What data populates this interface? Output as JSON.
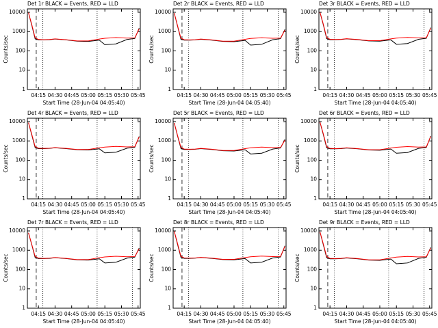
{
  "chart_data": [
    {
      "type": "line",
      "title": "Det 1r BLACK = Events, RED = LLD",
      "ylabel": "Counts/sec",
      "xlabel": "Start Time (28-Jun-04 04:05:40)",
      "log_y": true,
      "x": [
        "04:06",
        "04:09",
        "04:12",
        "04:15",
        "04:20",
        "04:25",
        "04:30",
        "04:40",
        "04:50",
        "05:00",
        "05:10",
        "05:15",
        "05:25",
        "05:35",
        "05:42",
        "05:46"
      ],
      "series": [
        {
          "color": "#000000",
          "values": [
            9500,
            2100,
            420,
            370,
            370,
            380,
            410,
            370,
            320,
            310,
            360,
            210,
            230,
            390,
            440,
            1500
          ]
        },
        {
          "color": "#ff0000",
          "values": [
            9500,
            2300,
            480,
            390,
            380,
            390,
            420,
            380,
            330,
            330,
            410,
            450,
            490,
            460,
            470,
            1400
          ]
        }
      ],
      "xlim": [
        "04:05",
        "05:47"
      ],
      "xticks": [
        "04:15",
        "04:30",
        "04:45",
        "05:00",
        "05:15",
        "05:30",
        "05:45"
      ],
      "ylim": [
        1,
        15000
      ],
      "yticks": [
        1,
        10,
        100,
        1000,
        10000
      ],
      "vlines": [
        {
          "x": "04:13",
          "style": "dashed"
        },
        {
          "x": "04:19",
          "style": "dotted"
        },
        {
          "x": "05:08",
          "style": "dotted"
        },
        {
          "x": "05:40",
          "style": "dotted"
        }
      ]
    },
    {
      "type": "line",
      "title": "Det 2r BLACK = Events, RED = LLD",
      "ylabel": "Counts/sec",
      "xlabel": "Start Time (28-Jun-04 04:05:40)",
      "log_y": true,
      "x": [
        "04:06",
        "04:09",
        "04:12",
        "04:15",
        "04:20",
        "04:25",
        "04:30",
        "04:40",
        "04:50",
        "05:00",
        "05:10",
        "05:15",
        "05:25",
        "05:35",
        "05:42",
        "05:46"
      ],
      "series": [
        {
          "color": "#000000",
          "values": [
            9000,
            1900,
            400,
            360,
            360,
            370,
            400,
            360,
            310,
            300,
            350,
            200,
            220,
            380,
            430,
            1300
          ]
        },
        {
          "color": "#ff0000",
          "values": [
            9000,
            2000,
            460,
            380,
            370,
            380,
            410,
            370,
            320,
            320,
            400,
            440,
            480,
            450,
            460,
            1200
          ]
        }
      ],
      "xlim": [
        "04:05",
        "05:47"
      ],
      "xticks": [
        "04:15",
        "04:30",
        "04:45",
        "05:00",
        "05:15",
        "05:30",
        "05:45"
      ],
      "ylim": [
        1,
        15000
      ],
      "yticks": [
        1,
        10,
        100,
        1000,
        10000
      ],
      "vlines": [
        {
          "x": "04:13",
          "style": "dashed"
        },
        {
          "x": "04:19",
          "style": "dotted"
        },
        {
          "x": "05:08",
          "style": "dotted"
        },
        {
          "x": "05:40",
          "style": "dotted"
        }
      ]
    },
    {
      "type": "line",
      "title": "Det 3r BLACK = Events, RED = LLD",
      "ylabel": "Counts/sec",
      "xlabel": "Start Time (28-Jun-04 04:05:40)",
      "log_y": true,
      "x": [
        "04:06",
        "04:09",
        "04:12",
        "04:15",
        "04:20",
        "04:25",
        "04:30",
        "04:40",
        "04:50",
        "05:00",
        "05:10",
        "05:15",
        "05:25",
        "05:35",
        "05:42",
        "05:46"
      ],
      "series": [
        {
          "color": "#000000",
          "values": [
            9800,
            2200,
            430,
            380,
            380,
            390,
            420,
            380,
            330,
            320,
            370,
            220,
            240,
            400,
            450,
            1600
          ]
        },
        {
          "color": "#ff0000",
          "values": [
            9800,
            2400,
            490,
            400,
            390,
            400,
            430,
            390,
            340,
            340,
            420,
            460,
            500,
            470,
            480,
            1500
          ]
        }
      ],
      "xlim": [
        "04:05",
        "05:47"
      ],
      "xticks": [
        "04:15",
        "04:30",
        "04:45",
        "05:00",
        "05:15",
        "05:30",
        "05:45"
      ],
      "ylim": [
        1,
        15000
      ],
      "yticks": [
        1,
        10,
        100,
        1000,
        10000
      ],
      "vlines": [
        {
          "x": "04:13",
          "style": "dashed"
        },
        {
          "x": "04:19",
          "style": "dotted"
        },
        {
          "x": "05:08",
          "style": "dotted"
        },
        {
          "x": "05:40",
          "style": "dotted"
        }
      ]
    },
    {
      "type": "line",
      "title": "Det 4r BLACK = Events, RED = LLD",
      "ylabel": "Counts/sec",
      "xlabel": "Start Time (28-Jun-04 04:05:40)",
      "log_y": true,
      "x": [
        "04:06",
        "04:09",
        "04:12",
        "04:15",
        "04:20",
        "04:25",
        "04:30",
        "04:40",
        "04:50",
        "05:00",
        "05:10",
        "05:15",
        "05:25",
        "05:35",
        "05:42",
        "05:46"
      ],
      "series": [
        {
          "color": "#000000",
          "values": [
            8800,
            2000,
            450,
            400,
            400,
            410,
            440,
            400,
            350,
            340,
            390,
            240,
            260,
            420,
            470,
            1700
          ]
        },
        {
          "color": "#ff0000",
          "values": [
            8800,
            2200,
            510,
            420,
            410,
            420,
            450,
            410,
            360,
            360,
            440,
            480,
            520,
            490,
            500,
            1600
          ]
        }
      ],
      "xlim": [
        "04:05",
        "05:47"
      ],
      "xticks": [
        "04:15",
        "04:30",
        "04:45",
        "05:00",
        "05:15",
        "05:30",
        "05:45"
      ],
      "ylim": [
        1,
        15000
      ],
      "yticks": [
        1,
        10,
        100,
        1000,
        10000
      ],
      "vlines": [
        {
          "x": "04:13",
          "style": "dashed"
        },
        {
          "x": "04:19",
          "style": "dotted"
        },
        {
          "x": "05:08",
          "style": "dotted"
        },
        {
          "x": "05:40",
          "style": "dotted"
        }
      ]
    },
    {
      "type": "line",
      "title": "Det 5r BLACK = Events, RED = LLD",
      "ylabel": "Counts/sec",
      "xlabel": "Start Time (28-Jun-04 04:05:40)",
      "log_y": true,
      "x": [
        "04:06",
        "04:09",
        "04:12",
        "04:15",
        "04:20",
        "04:25",
        "04:30",
        "04:40",
        "04:50",
        "05:00",
        "05:10",
        "05:15",
        "05:25",
        "05:35",
        "05:42",
        "05:46"
      ],
      "series": [
        {
          "color": "#000000",
          "values": [
            8500,
            1800,
            410,
            360,
            360,
            370,
            400,
            360,
            310,
            300,
            350,
            210,
            230,
            380,
            430,
            1200
          ]
        },
        {
          "color": "#ff0000",
          "values": [
            8500,
            1900,
            470,
            380,
            370,
            380,
            410,
            370,
            320,
            320,
            400,
            440,
            480,
            450,
            460,
            1100
          ]
        }
      ],
      "xlim": [
        "04:05",
        "05:47"
      ],
      "xticks": [
        "04:15",
        "04:30",
        "04:45",
        "05:00",
        "05:15",
        "05:30",
        "05:45"
      ],
      "ylim": [
        1,
        15000
      ],
      "yticks": [
        1,
        10,
        100,
        1000,
        10000
      ],
      "vlines": [
        {
          "x": "04:13",
          "style": "dashed"
        },
        {
          "x": "04:19",
          "style": "dotted"
        },
        {
          "x": "05:08",
          "style": "dotted"
        },
        {
          "x": "05:40",
          "style": "dotted"
        }
      ]
    },
    {
      "type": "line",
      "title": "Det 6r BLACK = Events, RED = LLD",
      "ylabel": "Counts/sec",
      "xlabel": "Start Time (28-Jun-04 04:05:40)",
      "log_y": true,
      "x": [
        "04:06",
        "04:09",
        "04:12",
        "04:15",
        "04:20",
        "04:25",
        "04:30",
        "04:40",
        "04:50",
        "05:00",
        "05:10",
        "05:15",
        "05:25",
        "05:35",
        "05:42",
        "05:46"
      ],
      "series": [
        {
          "color": "#000000",
          "values": [
            9200,
            2100,
            440,
            390,
            390,
            400,
            430,
            390,
            340,
            330,
            380,
            230,
            250,
            410,
            460,
            1800
          ]
        },
        {
          "color": "#ff0000",
          "values": [
            9200,
            2300,
            500,
            410,
            400,
            410,
            440,
            400,
            350,
            350,
            430,
            470,
            510,
            480,
            490,
            1700
          ]
        }
      ],
      "xlim": [
        "04:05",
        "05:47"
      ],
      "xticks": [
        "04:15",
        "04:30",
        "04:45",
        "05:00",
        "05:15",
        "05:30",
        "05:45"
      ],
      "ylim": [
        1,
        15000
      ],
      "yticks": [
        1,
        10,
        100,
        1000,
        10000
      ],
      "vlines": [
        {
          "x": "04:13",
          "style": "dashed"
        },
        {
          "x": "04:19",
          "style": "dotted"
        },
        {
          "x": "05:08",
          "style": "dotted"
        },
        {
          "x": "05:40",
          "style": "dotted"
        }
      ]
    },
    {
      "type": "line",
      "title": "Det 7r BLACK = Events, RED = LLD",
      "ylabel": "Counts/sec",
      "xlabel": "Start Time (28-Jun-04 04:05:40)",
      "log_y": true,
      "x": [
        "04:06",
        "04:09",
        "04:12",
        "04:15",
        "04:20",
        "04:25",
        "04:30",
        "04:40",
        "04:50",
        "05:00",
        "05:10",
        "05:15",
        "05:25",
        "05:35",
        "05:42",
        "05:46"
      ],
      "series": [
        {
          "color": "#000000",
          "values": [
            8000,
            1900,
            420,
            370,
            370,
            380,
            410,
            370,
            320,
            310,
            360,
            220,
            240,
            390,
            440,
            1300
          ]
        },
        {
          "color": "#ff0000",
          "values": [
            8000,
            2000,
            480,
            390,
            380,
            390,
            420,
            380,
            330,
            330,
            410,
            450,
            490,
            460,
            470,
            1200
          ]
        }
      ],
      "xlim": [
        "04:05",
        "05:47"
      ],
      "xticks": [
        "04:15",
        "04:30",
        "04:45",
        "05:00",
        "05:15",
        "05:30",
        "05:45"
      ],
      "ylim": [
        1,
        15000
      ],
      "yticks": [
        1,
        10,
        100,
        1000,
        10000
      ],
      "vlines": [
        {
          "x": "04:13",
          "style": "dashed"
        },
        {
          "x": "04:19",
          "style": "dotted"
        },
        {
          "x": "05:08",
          "style": "dotted"
        },
        {
          "x": "05:40",
          "style": "dotted"
        }
      ]
    },
    {
      "type": "line",
      "title": "Det 8r BLACK = Events, RED = LLD",
      "ylabel": "Counts/sec",
      "xlabel": "Start Time (28-Jun-04 04:05:40)",
      "log_y": true,
      "x": [
        "04:06",
        "04:09",
        "04:12",
        "04:15",
        "04:20",
        "04:25",
        "04:30",
        "04:40",
        "04:50",
        "05:00",
        "05:10",
        "05:15",
        "05:25",
        "05:35",
        "05:42",
        "05:46"
      ],
      "series": [
        {
          "color": "#000000",
          "values": [
            9600,
            2000,
            430,
            380,
            380,
            390,
            420,
            380,
            330,
            320,
            370,
            220,
            240,
            400,
            450,
            1700
          ]
        },
        {
          "color": "#ff0000",
          "values": [
            9600,
            2200,
            490,
            400,
            390,
            400,
            430,
            390,
            340,
            340,
            420,
            460,
            500,
            470,
            480,
            1600
          ]
        }
      ],
      "xlim": [
        "04:05",
        "05:47"
      ],
      "xticks": [
        "04:15",
        "04:30",
        "04:45",
        "05:00",
        "05:15",
        "05:30",
        "05:45"
      ],
      "ylim": [
        1,
        15000
      ],
      "yticks": [
        1,
        10,
        100,
        1000,
        10000
      ],
      "vlines": [
        {
          "x": "04:13",
          "style": "dashed"
        },
        {
          "x": "04:19",
          "style": "dotted"
        },
        {
          "x": "05:08",
          "style": "dotted"
        },
        {
          "x": "05:40",
          "style": "dotted"
        }
      ]
    },
    {
      "type": "line",
      "title": "Det 9r BLACK = Events, RED = LLD",
      "ylabel": "Counts/sec",
      "xlabel": "Start Time (28-Jun-04 04:05:40)",
      "log_y": true,
      "x": [
        "04:06",
        "04:09",
        "04:12",
        "04:15",
        "04:20",
        "04:25",
        "04:30",
        "04:40",
        "04:50",
        "05:00",
        "05:10",
        "05:15",
        "05:25",
        "05:35",
        "05:42",
        "05:46"
      ],
      "series": [
        {
          "color": "#000000",
          "values": [
            8700,
            1900,
            410,
            360,
            360,
            370,
            400,
            360,
            310,
            300,
            350,
            200,
            220,
            380,
            430,
            1400
          ]
        },
        {
          "color": "#ff0000",
          "values": [
            8700,
            2100,
            470,
            380,
            370,
            380,
            410,
            370,
            320,
            320,
            400,
            440,
            480,
            450,
            460,
            1300
          ]
        }
      ],
      "xlim": [
        "04:05",
        "05:47"
      ],
      "xticks": [
        "04:15",
        "04:30",
        "04:45",
        "05:00",
        "05:15",
        "05:30",
        "05:45"
      ],
      "ylim": [
        1,
        15000
      ],
      "yticks": [
        1,
        10,
        100,
        1000,
        10000
      ],
      "vlines": [
        {
          "x": "04:13",
          "style": "dashed"
        },
        {
          "x": "04:19",
          "style": "dotted"
        },
        {
          "x": "05:08",
          "style": "dotted"
        },
        {
          "x": "05:40",
          "style": "dotted"
        }
      ]
    }
  ]
}
